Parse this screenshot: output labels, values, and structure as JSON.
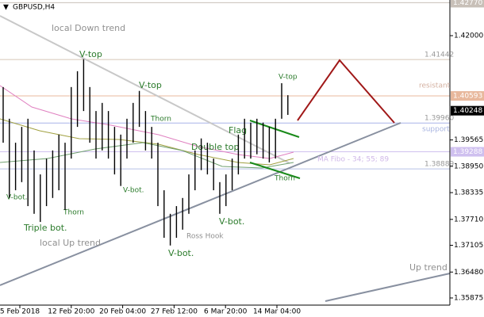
{
  "chart_data": {
    "type": "ohlc",
    "title": "GBPUSD,H4",
    "high": [
      1.408,
      1.4006,
      1.395,
      1.3987,
      1.4006,
      1.3932,
      1.3876,
      1.3913,
      1.3932,
      1.3969,
      1.395,
      1.408,
      1.4117,
      1.4145,
      1.408,
      1.4024,
      1.4043,
      1.4024,
      1.3987,
      1.3969,
      1.4006,
      1.4043,
      1.4071,
      1.4024,
      1.3987,
      1.395,
      1.3839,
      1.3784,
      1.3802,
      1.3821,
      1.3876,
      1.3932,
      1.396,
      1.395,
      1.3913,
      1.3858,
      1.3876,
      1.3913,
      1.3969,
      1.4006,
      1.3997,
      1.4006,
      1.3997,
      1.3987,
      1.4006,
      1.4089,
      1.4061
    ],
    "low": [
      1.395,
      1.3821,
      1.3839,
      1.3858,
      1.3802,
      1.3784,
      1.3765,
      1.3802,
      1.3821,
      1.3839,
      1.3793,
      1.3913,
      1.3987,
      1.4024,
      1.395,
      1.3913,
      1.3932,
      1.3913,
      1.3876,
      1.3849,
      1.3913,
      1.395,
      1.3987,
      1.3932,
      1.3913,
      1.3802,
      1.3728,
      1.371,
      1.3728,
      1.3747,
      1.3784,
      1.3839,
      1.3886,
      1.3876,
      1.3839,
      1.3784,
      1.3802,
      1.3839,
      1.3876,
      1.3913,
      1.3913,
      1.3923,
      1.3913,
      1.3904,
      1.3913,
      1.4006,
      1.4015
    ],
    "color": "#000000",
    "ylim": [
      1.35708,
      1.42833
    ],
    "yticks": [
      {
        "value": 1.42,
        "label": "1.42000"
      },
      {
        "value": 1.39565,
        "label": "1.39565"
      },
      {
        "value": 1.3895,
        "label": "1.38950"
      },
      {
        "value": 1.38335,
        "label": "1.38335"
      },
      {
        "value": 1.3771,
        "label": "1.37710"
      },
      {
        "value": 1.37105,
        "label": "1.37105"
      },
      {
        "value": 1.3648,
        "label": "1.36480"
      },
      {
        "value": 1.35875,
        "label": "1.35875"
      }
    ],
    "xlabels": [
      "5 Feb 2018",
      "12 Feb 20:00",
      "20 Feb 04:00",
      "27 Feb 12:00",
      "6 Mar 20:00",
      "14 Mar 04:00"
    ],
    "levels": [
      {
        "value": 1.4277,
        "label": "1.42770",
        "color": "#c8c0b8",
        "box": true
      },
      {
        "value": 1.41442,
        "color": "#d8c8b8",
        "box": false
      },
      {
        "value": 1.40593,
        "color": "#e8b89c",
        "box": true
      },
      {
        "value": 1.3996,
        "label": "1.39960",
        "color": "#a8b4e8",
        "box": false
      },
      {
        "value": 1.39288,
        "color": "#cfc0ef",
        "box": true
      },
      {
        "value": 1.38889,
        "color": "#b8c0e8",
        "box": false
      }
    ],
    "current_price": 1.40248,
    "annotations": [
      "local Down trend",
      "V-top",
      "V-top",
      "Thorn",
      "V-top",
      "resistant",
      "support",
      "Flag",
      "Double top",
      "MA Fibo - 34; 55; 89",
      "Thorn",
      "V-bot.",
      "V-bot.",
      "Thorn",
      "V-bot.",
      "Triple bot.",
      "local  Up trend",
      "Ross Hook",
      "V-bot.",
      "Up trend"
    ]
  }
}
